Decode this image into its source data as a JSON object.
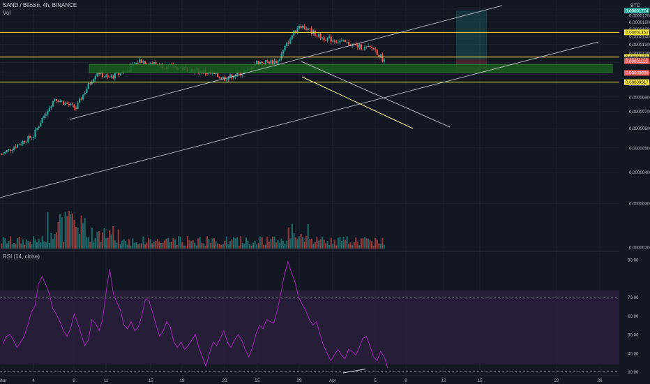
{
  "header": {
    "symbol": "SAND / Bitcoin, 4h, BINANCE",
    "vol_label": "Vol",
    "rsi_label": "RSI (14, close)"
  },
  "price_axis": {
    "currency": "BTC",
    "ticks": [
      "0.00001800",
      "0.00001700",
      "0.00001600",
      "0.00001500",
      "0.00001400",
      "0.00001300",
      "0.00001200",
      "0.00001100",
      "0.00001000",
      "0.00000900",
      "0.00000800",
      "0.00000700",
      "0.00000600",
      "0.00000500",
      "0.00000400",
      "0.00000300",
      "0.00000200"
    ],
    "badges": [
      {
        "text": "0.00001774",
        "value": 1.774e-05,
        "color": "#26a69a"
      },
      {
        "text": "0.00001452",
        "value": 1.452e-05,
        "color": "#ffeb3b"
      },
      {
        "text": "0.00001156",
        "value": 1.156e-05,
        "color": "#ffeb3b"
      },
      {
        "text": "0.00001130",
        "value": 1.13e-05,
        "color": "#434651"
      },
      {
        "text": "0.00001113",
        "value": 1.113e-05,
        "color": "#ef5350"
      },
      {
        "text": "0.00000999",
        "value": 9.99e-06,
        "color": "#ef5350"
      },
      {
        "text": "0.00000917",
        "value": 9.17e-06,
        "color": "#ffeb3b"
      }
    ]
  },
  "rsi_axis": {
    "ticks": [
      "90.00",
      "70.00",
      "60.00",
      "50.00",
      "40.00",
      "30.00"
    ]
  },
  "time_axis": {
    "labels": [
      "Mar",
      "4",
      "8",
      "11",
      "15",
      "18",
      "22",
      "25",
      "29",
      "Apr",
      "5",
      "8",
      "12",
      "15",
      "22",
      "26"
    ]
  },
  "colors": {
    "background": "#131722",
    "up": "#26a69a",
    "down": "#ef5350",
    "level_line": "#ffeb3b",
    "channel_line": "#d1d4dc",
    "rsi_line": "#9c27b0",
    "rsi_band": "#2a1f3d",
    "zone": "#1b5e20"
  },
  "chart_data": {
    "type": "candlestick",
    "title": "SAND / Bitcoin, 4h, BINANCE",
    "interval": "4h",
    "ylim": [
      1.8e-06,
      1.9e-05
    ],
    "close_path": [
      {
        "t": "Mar 1",
        "close": 4.7e-06
      },
      {
        "t": "Mar 4",
        "close": 5.6e-06
      },
      {
        "t": "Mar 6",
        "close": 7.9e-06
      },
      {
        "t": "Mar 8",
        "close": 7.2e-06
      },
      {
        "t": "Mar 10",
        "close": 1.01e-05
      },
      {
        "t": "Mar 11",
        "close": 9.5e-06
      },
      {
        "t": "Mar 13",
        "close": 1.03e-05
      },
      {
        "t": "Mar 14",
        "close": 1.12e-05
      },
      {
        "t": "Mar 16",
        "close": 1.07e-05
      },
      {
        "t": "Mar 18",
        "close": 1.04e-05
      },
      {
        "t": "Mar 20",
        "close": 1.01e-05
      },
      {
        "t": "Mar 22",
        "close": 9.5e-06
      },
      {
        "t": "Mar 24",
        "close": 1.01e-05
      },
      {
        "t": "Mar 25",
        "close": 1.1e-05
      },
      {
        "t": "Mar 27",
        "close": 1.11e-05
      },
      {
        "t": "Mar 29",
        "close": 1.56e-05
      },
      {
        "t": "Mar 31",
        "close": 1.39e-05
      },
      {
        "t": "Apr 2",
        "close": 1.33e-05
      },
      {
        "t": "Apr 4",
        "close": 1.26e-05
      },
      {
        "t": "Apr 5",
        "close": 1.25e-05
      },
      {
        "t": "Apr 6",
        "close": 1.113e-05
      }
    ],
    "horizontal_levels": [
      1.452e-05,
      1.156e-05,
      9.17e-06
    ],
    "rsi": {
      "ylim": [
        28,
        93
      ],
      "bands": [
        30,
        70
      ],
      "values": [
        45,
        49,
        50,
        47,
        43,
        46,
        49,
        55,
        62,
        65,
        77,
        81,
        77,
        72,
        64,
        61,
        57,
        52,
        49,
        53,
        61,
        56,
        50,
        44,
        47,
        58,
        56,
        52,
        58,
        73,
        85,
        72,
        67,
        63,
        55,
        53,
        57,
        52,
        54,
        60,
        69,
        68,
        62,
        55,
        49,
        52,
        57,
        54,
        46,
        43,
        46,
        42,
        44,
        47,
        50,
        43,
        38,
        33,
        40,
        46,
        44,
        48,
        52,
        46,
        43,
        47,
        50,
        47,
        42,
        38,
        43,
        50,
        55,
        53,
        58,
        57,
        56,
        63,
        72,
        82,
        89,
        83,
        78,
        70,
        66,
        63,
        58,
        55,
        57,
        50,
        44,
        40,
        36,
        39,
        42,
        39,
        37,
        42,
        41,
        39,
        43,
        48,
        49,
        44,
        38,
        36,
        41,
        38,
        32
      ]
    }
  }
}
